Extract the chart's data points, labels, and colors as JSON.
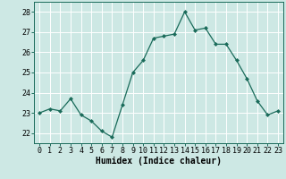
{
  "x": [
    0,
    1,
    2,
    3,
    4,
    5,
    6,
    7,
    8,
    9,
    10,
    11,
    12,
    13,
    14,
    15,
    16,
    17,
    18,
    19,
    20,
    21,
    22,
    23
  ],
  "y": [
    23.0,
    23.2,
    23.1,
    23.7,
    22.9,
    22.6,
    22.1,
    21.8,
    23.4,
    25.0,
    25.6,
    26.7,
    26.8,
    26.9,
    28.0,
    27.1,
    27.2,
    26.4,
    26.4,
    25.6,
    24.7,
    23.6,
    22.9,
    23.1
  ],
  "line_color": "#1a6b5a",
  "marker": "D",
  "marker_size": 2.0,
  "bg_color": "#cde8e4",
  "grid_color": "#ffffff",
  "xlabel": "Humidex (Indice chaleur)",
  "ylim": [
    21.5,
    28.5
  ],
  "xlim": [
    -0.5,
    23.5
  ],
  "yticks": [
    22,
    23,
    24,
    25,
    26,
    27,
    28
  ],
  "xticks": [
    0,
    1,
    2,
    3,
    4,
    5,
    6,
    7,
    8,
    9,
    10,
    11,
    12,
    13,
    14,
    15,
    16,
    17,
    18,
    19,
    20,
    21,
    22,
    23
  ],
  "xlabel_fontsize": 7,
  "tick_fontsize": 6,
  "linewidth": 0.9
}
